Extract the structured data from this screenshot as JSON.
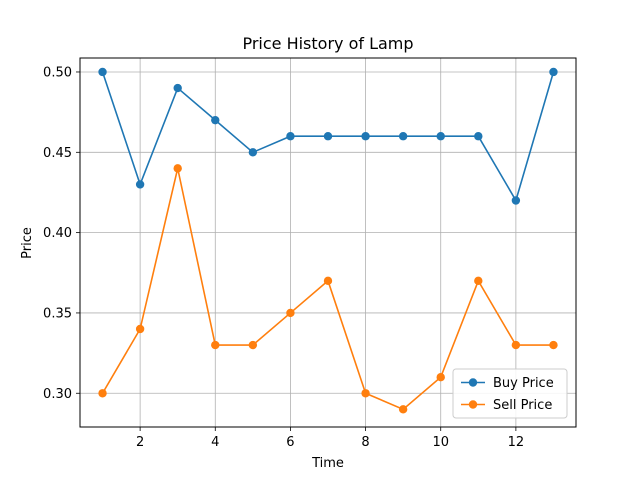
{
  "chart_data": {
    "type": "line",
    "title": "Price History of Lamp",
    "xlabel": "Time",
    "ylabel": "Price",
    "x": [
      1,
      2,
      3,
      4,
      5,
      6,
      7,
      8,
      9,
      10,
      11,
      12,
      13
    ],
    "xlim": [
      0.4,
      13.6
    ],
    "ylim": [
      0.28,
      0.5
    ],
    "x_ticks": [
      2,
      4,
      6,
      8,
      10,
      12
    ],
    "y_ticks": [
      0.3,
      0.35,
      0.4,
      0.45,
      0.5
    ],
    "y_tick_labels": [
      "0.30",
      "0.35",
      "0.40",
      "0.45",
      "0.50"
    ],
    "grid": true,
    "legend_position": "bottom-right",
    "series": [
      {
        "name": "Buy Price",
        "color": "#1f77b4",
        "values": [
          0.5,
          0.43,
          0.49,
          0.47,
          0.45,
          0.46,
          0.46,
          0.46,
          0.46,
          0.46,
          0.46,
          0.42,
          0.5
        ]
      },
      {
        "name": "Sell Price",
        "color": "#ff7f0e",
        "values": [
          0.3,
          0.34,
          0.44,
          0.33,
          0.33,
          0.35,
          0.37,
          0.3,
          0.29,
          0.31,
          0.37,
          0.33,
          0.33
        ]
      }
    ]
  }
}
